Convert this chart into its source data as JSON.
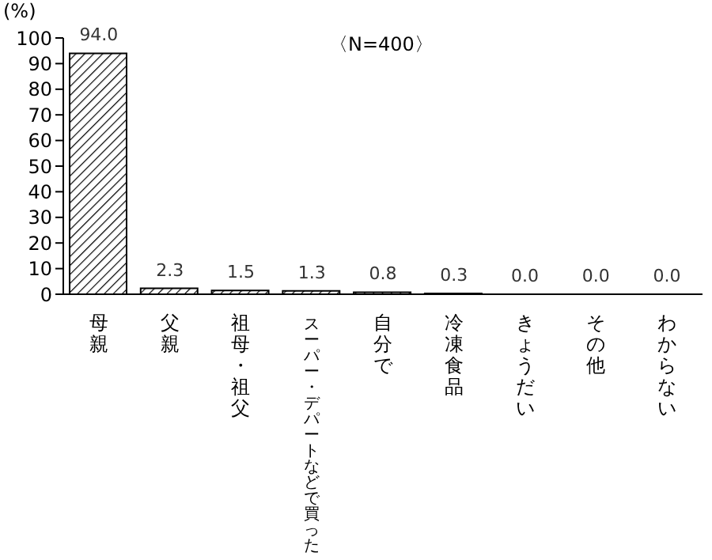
{
  "chart_data": {
    "type": "bar",
    "ylabel": "(%)",
    "annotations": [
      "〈N=400〉"
    ],
    "categories": [
      "母親",
      "父親",
      "祖母・祖父",
      "スーパー・デパートなどで買った",
      "自分で",
      "冷凍食品",
      "きょうだい",
      "その他",
      "わからない"
    ],
    "values": [
      94.0,
      2.3,
      1.5,
      1.3,
      0.8,
      0.3,
      0.0,
      0.0,
      0.0
    ],
    "value_labels": [
      "94.0",
      "2.3",
      "1.5",
      "1.3",
      "0.8",
      "0.3",
      "0.0",
      "0.0",
      "0.0"
    ],
    "color": "#000000",
    "ylim": [
      0,
      100
    ],
    "yticks": [
      0,
      10,
      20,
      30,
      40,
      50,
      60,
      70,
      80,
      90,
      100
    ],
    "grid": false,
    "legend": false
  }
}
